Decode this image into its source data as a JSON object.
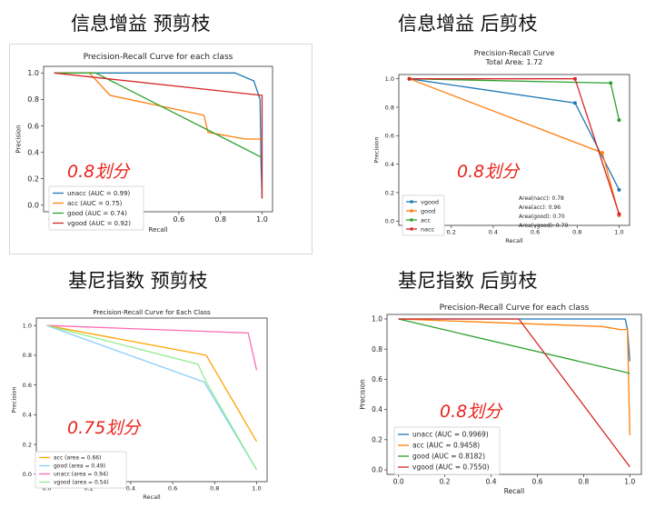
{
  "panels": [
    {
      "heading": "信息增益 预剪枝",
      "split_label": "0.8划分",
      "chart_data": {
        "type": "line",
        "title": "Precision-Recall Curve for each class",
        "subtitle": "",
        "xlabel": "Recall",
        "ylabel": "Precision",
        "xlim": [
          -0.05,
          1.05
        ],
        "ylim": [
          -0.05,
          1.05
        ],
        "xticks": [
          "0.0",
          "0.2",
          "0.4",
          "0.6",
          "0.8",
          "1.0"
        ],
        "yticks": [
          "0.0",
          "0.2",
          "0.4",
          "0.6",
          "0.8",
          "1.0"
        ],
        "legend_position": "lower-left",
        "series": [
          {
            "name": "unacc (AUC = 0.99)",
            "color": "#1f77b4",
            "x": [
              0,
              0.87,
              0.96,
              0.99,
              0.995,
              1.0
            ],
            "y": [
              1.0,
              1.0,
              0.94,
              0.8,
              0.3,
              0.05
            ],
            "markers": false
          },
          {
            "name": "acc (AUC = 0.75)",
            "color": "#ff7f0e",
            "x": [
              0,
              0.17,
              0.27,
              0.72,
              0.74,
              0.92,
              0.99,
              1.0
            ],
            "y": [
              1.0,
              1.0,
              0.83,
              0.68,
              0.55,
              0.5,
              0.5,
              0.5
            ],
            "markers": false
          },
          {
            "name": "good (AUC = 0.74)",
            "color": "#2ca02c",
            "x": [
              0,
              0.2,
              1.0
            ],
            "y": [
              1.0,
              1.0,
              0.36
            ],
            "markers": false
          },
          {
            "name": "vgood (AUC = 0.92)",
            "color": "#d62728",
            "x": [
              0,
              1.0,
              1.0
            ],
            "y": [
              1.0,
              0.83,
              0.05
            ],
            "markers": false
          }
        ],
        "area_notes": []
      }
    },
    {
      "heading": "信息增益 后剪枝",
      "split_label": "0.8划分",
      "chart_data": {
        "type": "line",
        "title": "Precision-Recall Curve",
        "subtitle": "Total Area: 1.72",
        "xlabel": "Recall",
        "ylabel": "Precision",
        "xlim": [
          -0.05,
          1.05
        ],
        "ylim": [
          -0.03,
          1.03
        ],
        "xticks": [
          "0.0",
          "0.2",
          "0.4",
          "0.6",
          "0.8",
          "1.0"
        ],
        "yticks": [
          "0.0",
          "0.2",
          "0.4",
          "0.6",
          "0.8",
          "1.0"
        ],
        "legend_position": "lower-left",
        "series": [
          {
            "name": "vgood",
            "color": "#1f77b4",
            "x": [
              0,
              0.79,
              1.0
            ],
            "y": [
              1.0,
              0.83,
              0.22
            ],
            "markers": true
          },
          {
            "name": "good",
            "color": "#ff7f0e",
            "x": [
              0,
              0.92,
              1.0
            ],
            "y": [
              1.0,
              0.48,
              0.04
            ],
            "markers": true
          },
          {
            "name": "acc",
            "color": "#2ca02c",
            "x": [
              0,
              0.96,
              1.0
            ],
            "y": [
              1.0,
              0.97,
              0.71
            ],
            "markers": true
          },
          {
            "name": "nacc",
            "color": "#d62728",
            "x": [
              0,
              0.79,
              1.0
            ],
            "y": [
              1.0,
              1.0,
              0.05
            ],
            "markers": true
          }
        ],
        "area_notes": [
          "Area(nacc): 0.78",
          "Area(acc): 0.96",
          "Area(good): 0.70",
          "Area(vgood): 0.79"
        ]
      }
    },
    {
      "heading": "基尼指数 预剪枝",
      "split_label": "0.75划分",
      "chart_data": {
        "type": "line",
        "title": "Precision-Recall Curve for Each Class",
        "subtitle": "",
        "xlabel": "Recall",
        "ylabel": "Precision",
        "xlim": [
          -0.05,
          1.05
        ],
        "ylim": [
          -0.05,
          1.05
        ],
        "xticks": [
          "0.0",
          "0.2",
          "0.4",
          "0.6",
          "0.8",
          "1.0"
        ],
        "yticks": [
          "0.0",
          "0.2",
          "0.4",
          "0.6",
          "0.8",
          "1.0"
        ],
        "legend_position": "lower-left",
        "series": [
          {
            "name": "acc (area = 0.66)",
            "color": "#ffa500",
            "x": [
              0,
              0.76,
              1.0
            ],
            "y": [
              1.0,
              0.8,
              0.22
            ],
            "markers": false
          },
          {
            "name": "good (area = 0.49)",
            "color": "#87cefa",
            "x": [
              0,
              0.75,
              1.0
            ],
            "y": [
              1.0,
              0.62,
              0.03
            ],
            "markers": false
          },
          {
            "name": "unacc (area = 0.94)",
            "color": "#ff69b4",
            "x": [
              0,
              0.96,
              1.0
            ],
            "y": [
              1.0,
              0.95,
              0.7
            ],
            "markers": false
          },
          {
            "name": "vgood (area = 0.54)",
            "color": "#90ee90",
            "x": [
              0,
              0.72,
              0.76,
              1.0
            ],
            "y": [
              1.0,
              0.74,
              0.62,
              0.03
            ],
            "markers": false
          }
        ],
        "area_notes": []
      }
    },
    {
      "heading": "基尼指数 后剪枝",
      "split_label": "0.8划分",
      "chart_data": {
        "type": "line",
        "title": "Precision-Recall Curve for each class",
        "subtitle": "",
        "xlabel": "Recall",
        "ylabel": "Precision",
        "xlim": [
          -0.05,
          1.05
        ],
        "ylim": [
          -0.03,
          1.03
        ],
        "xticks": [
          "0.0",
          "0.2",
          "0.4",
          "0.6",
          "0.8",
          "1.0"
        ],
        "yticks": [
          "0.0",
          "0.2",
          "0.4",
          "0.6",
          "0.8",
          "1.0"
        ],
        "legend_position": "lower-left",
        "series": [
          {
            "name": "unacc (AUC = 0.9969)",
            "color": "#1f77b4",
            "x": [
              0,
              0.98,
              0.99,
              1.0
            ],
            "y": [
              1.0,
              1.0,
              0.93,
              0.72
            ],
            "markers": false
          },
          {
            "name": "acc (AUC = 0.9458)",
            "color": "#ff7f0e",
            "x": [
              0,
              0.88,
              0.96,
              0.99,
              1.0
            ],
            "y": [
              1.0,
              0.95,
              0.93,
              0.93,
              0.23
            ],
            "markers": false
          },
          {
            "name": "good (AUC = 0.8182)",
            "color": "#2ca02c",
            "x": [
              0,
              1.0
            ],
            "y": [
              1.0,
              0.64
            ],
            "markers": false
          },
          {
            "name": "vgood (AUC = 0.7550)",
            "color": "#d62728",
            "x": [
              0,
              0.52,
              1.0
            ],
            "y": [
              1.0,
              1.0,
              0.02
            ],
            "markers": false
          }
        ],
        "area_notes": []
      }
    }
  ]
}
